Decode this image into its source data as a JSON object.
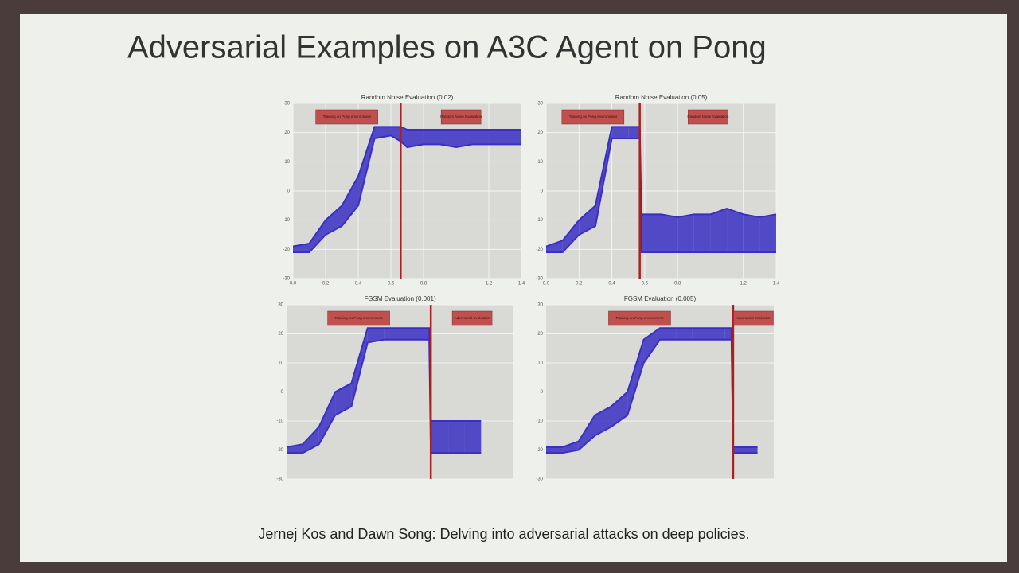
{
  "title": "Adversarial Examples on A3C Agent on Pong",
  "citation": "Jernej Kos and Dawn Song: Delving into adversarial attacks on deep policies.",
  "chart_data": [
    {
      "type": "line",
      "title": "Random Noise Evaluation (0.02)",
      "x": [
        0,
        0.1,
        0.2,
        0.3,
        0.4,
        0.5,
        0.6,
        0.66,
        0.7,
        0.8,
        0.9,
        1.0,
        1.1,
        1.2,
        1.3,
        1.4
      ],
      "series": [
        {
          "color": "#3a2fc4",
          "values": [
            -19,
            -18,
            -10,
            -5,
            5,
            22,
            22,
            22,
            21,
            21,
            21,
            21,
            21,
            21,
            21,
            21
          ]
        },
        {
          "color": "#3a2fc4",
          "values": [
            -21,
            -21,
            -15,
            -12,
            -5,
            18,
            19,
            17,
            15,
            16,
            16,
            15,
            16,
            16,
            16,
            16
          ]
        }
      ],
      "vline": 0.66,
      "vline_color": "#a8201f",
      "annotations": [
        "Training on Pong environment",
        "Random Noise Evaluation"
      ],
      "xlim": [
        0,
        1.4
      ],
      "ylim": [
        -30,
        30
      ],
      "yticks": [
        -30,
        -20,
        -10,
        0,
        10,
        20,
        30
      ],
      "xticks": [
        {
          "value": 0,
          "label": "0.0"
        },
        0.2,
        0.4,
        0.6,
        0.8,
        1.2,
        1.4
      ],
      "grid": true
    },
    {
      "type": "line",
      "title": "Random Noise Evaluation (0.05)",
      "x": [
        0,
        0.1,
        0.2,
        0.3,
        0.4,
        0.5,
        0.57,
        0.58,
        0.7,
        0.8,
        0.9,
        1.0,
        1.1,
        1.2,
        1.3,
        1.4
      ],
      "series": [
        {
          "color": "#3a2fc4",
          "values": [
            -19,
            -17,
            -10,
            -5,
            22,
            22,
            22,
            -8,
            -8,
            -9,
            -8,
            -8,
            -6,
            -8,
            -9,
            -8
          ]
        },
        {
          "color": "#3a2fc4",
          "values": [
            -21,
            -21,
            -15,
            -12,
            18,
            18,
            18,
            -21,
            -21,
            -21,
            -21,
            -21,
            -21,
            -21,
            -21,
            -21
          ]
        }
      ],
      "vline": 0.57,
      "vline_color": "#a8201f",
      "annotations": [
        "Training on Pong environment",
        "Random Noise Evaluation"
      ],
      "xlim": [
        0,
        1.4
      ],
      "ylim": [
        -30,
        30
      ],
      "yticks": [
        -30,
        -20,
        -10,
        0,
        10,
        20,
        30
      ],
      "xticks": [
        {
          "value": 0,
          "label": "0.0"
        },
        0.2,
        0.4,
        0.6,
        0.8,
        1.2,
        1.4
      ],
      "grid": true
    },
    {
      "type": "line",
      "title": "FGSM Evaluation (0.001)",
      "x": [
        0,
        0.1,
        0.2,
        0.3,
        0.4,
        0.5,
        0.6,
        0.7,
        0.8,
        0.88,
        0.89,
        1.0,
        1.1,
        1.2
      ],
      "series": [
        {
          "color": "#3a2fc4",
          "values": [
            -19,
            -18,
            -12,
            0,
            3,
            22,
            22,
            22,
            22,
            22,
            -10,
            -10,
            -10,
            -10
          ]
        },
        {
          "color": "#3a2fc4",
          "values": [
            -21,
            -21,
            -18,
            -8,
            -5,
            17,
            18,
            18,
            18,
            18,
            -21,
            -21,
            -21,
            -21
          ]
        }
      ],
      "vline": 0.89,
      "vline_color": "#a8201f",
      "annotations": [
        "Training on Pong environment",
        "Adversarial Evaluation"
      ],
      "xlim": [
        0,
        1.4
      ],
      "ylim": [
        -30,
        30
      ],
      "yticks": [
        -30,
        -20,
        -10,
        0,
        10,
        20,
        30
      ],
      "grid": true
    },
    {
      "type": "line",
      "title": "FGSM Evaluation (0.005)",
      "x": [
        0,
        0.1,
        0.2,
        0.3,
        0.4,
        0.5,
        0.6,
        0.7,
        0.8,
        0.9,
        1.0,
        1.1,
        1.14,
        1.15,
        1.3
      ],
      "series": [
        {
          "color": "#3a2fc4",
          "values": [
            -19,
            -19,
            -17,
            -8,
            -5,
            0,
            18,
            22,
            22,
            22,
            22,
            22,
            22,
            -19,
            -19
          ]
        },
        {
          "color": "#3a2fc4",
          "values": [
            -21,
            -21,
            -20,
            -15,
            -12,
            -8,
            10,
            18,
            18,
            18,
            18,
            18,
            18,
            -21,
            -21
          ]
        }
      ],
      "vline": 1.15,
      "vline_color": "#a8201f",
      "annotations": [
        "Training on Pong environment",
        "Adversarial Evaluation"
      ],
      "xlim": [
        0,
        1.4
      ],
      "ylim": [
        -30,
        30
      ],
      "yticks": [
        -30,
        -20,
        -10,
        0,
        10,
        20,
        30
      ],
      "grid": true
    }
  ]
}
